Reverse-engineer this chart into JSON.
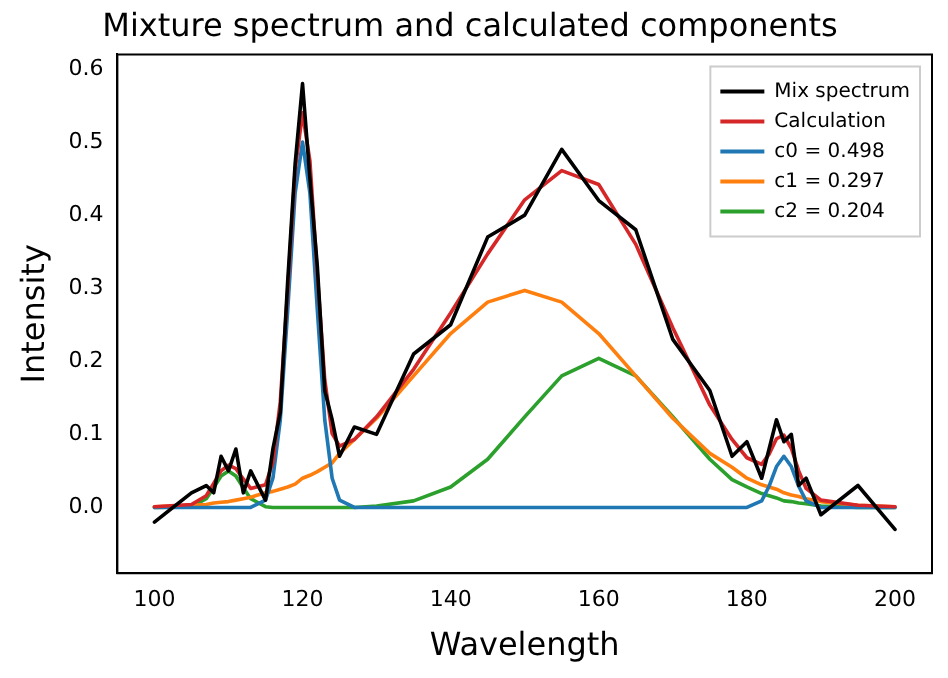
{
  "chart_data": {
    "type": "line",
    "title": "Mixture spectrum and calculated components",
    "xlabel": "Wavelength",
    "ylabel": "Intensity",
    "x": [
      100,
      105,
      107,
      108,
      109,
      110,
      111,
      112,
      113,
      115,
      116,
      117,
      118,
      119,
      120,
      121,
      122,
      123,
      124,
      125,
      127,
      130,
      135,
      140,
      145,
      150,
      155,
      160,
      165,
      170,
      175,
      178,
      180,
      182,
      183,
      184,
      185,
      186,
      187,
      188,
      190,
      195,
      200
    ],
    "series": [
      {
        "name": "Mix spectrum",
        "color": "#000000",
        "values": [
          -0.02,
          0.02,
          0.03,
          0.02,
          0.07,
          0.05,
          0.08,
          0.02,
          0.05,
          0.01,
          0.08,
          0.13,
          0.31,
          0.47,
          0.58,
          0.45,
          0.33,
          0.16,
          0.12,
          0.07,
          0.11,
          0.1,
          0.21,
          0.25,
          0.37,
          0.4,
          0.49,
          0.42,
          0.38,
          0.23,
          0.16,
          0.07,
          0.09,
          0.04,
          0.08,
          0.12,
          0.09,
          0.1,
          0.03,
          0.04,
          -0.01,
          0.03,
          -0.03
        ]
      },
      {
        "name": "Calculation",
        "color": "#d62728",
        "values": [
          0.001,
          0.004,
          0.016,
          0.033,
          0.05,
          0.058,
          0.053,
          0.039,
          0.026,
          0.031,
          0.062,
          0.145,
          0.298,
          0.462,
          0.54,
          0.474,
          0.319,
          0.175,
          0.101,
          0.084,
          0.093,
          0.124,
          0.189,
          0.266,
          0.347,
          0.421,
          0.461,
          0.442,
          0.36,
          0.246,
          0.14,
          0.093,
          0.068,
          0.059,
          0.073,
          0.094,
          0.099,
          0.081,
          0.05,
          0.026,
          0.01,
          0.003,
          0.001
        ]
      },
      {
        "name": "c0 = 0.498",
        "color": "#1f77b4",
        "values": [
          0,
          0,
          0,
          0,
          0,
          0,
          0,
          0,
          0,
          0.01,
          0.04,
          0.12,
          0.27,
          0.43,
          0.5,
          0.43,
          0.27,
          0.12,
          0.04,
          0.01,
          0,
          0,
          0,
          0,
          0,
          0,
          0,
          0,
          0,
          0,
          0,
          0,
          0,
          0.009,
          0.029,
          0.056,
          0.07,
          0.056,
          0.029,
          0.009,
          0,
          0,
          0
        ]
      },
      {
        "name": "c1 = 0.297",
        "color": "#ff7f0e",
        "values": [
          0.001,
          0.003,
          0.004,
          0.006,
          0.007,
          0.008,
          0.01,
          0.012,
          0.014,
          0.02,
          0.022,
          0.025,
          0.028,
          0.032,
          0.04,
          0.044,
          0.049,
          0.055,
          0.061,
          0.074,
          0.093,
          0.122,
          0.18,
          0.238,
          0.281,
          0.297,
          0.281,
          0.238,
          0.18,
          0.122,
          0.074,
          0.055,
          0.04,
          0.031,
          0.028,
          0.025,
          0.02,
          0.017,
          0.015,
          0.012,
          0.008,
          0.003,
          0.001
        ]
      },
      {
        "name": "c2 = 0.204",
        "color": "#2ca02c",
        "values": [
          0,
          0.001,
          0.012,
          0.027,
          0.043,
          0.05,
          0.043,
          0.027,
          0.012,
          0.001,
          0,
          0,
          0,
          0,
          0,
          0,
          0,
          0,
          0,
          0,
          0,
          0.002,
          0.009,
          0.028,
          0.066,
          0.124,
          0.18,
          0.204,
          0.18,
          0.124,
          0.066,
          0.038,
          0.028,
          0.019,
          0.016,
          0.013,
          0.009,
          0.008,
          0.006,
          0.005,
          0.002,
          0,
          0
        ]
      }
    ],
    "xlim": [
      95,
      205
    ],
    "xticks": [
      100,
      120,
      140,
      160,
      180,
      200
    ],
    "ylim": [
      -0.09,
      0.62
    ],
    "yticks": [
      {
        "value": 0,
        "label": "0.0"
      },
      0.1,
      0.2,
      0.3,
      0.4,
      0.5,
      0.6
    ],
    "grid": false,
    "legend": "top right",
    "marker": "none",
    "line_style": "solid"
  }
}
